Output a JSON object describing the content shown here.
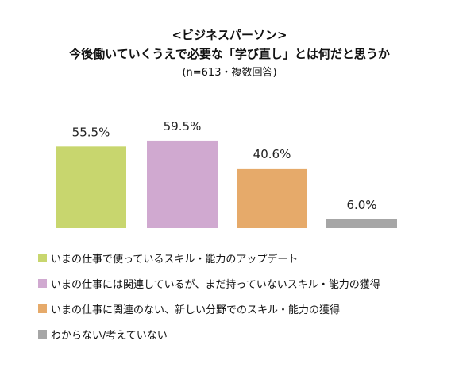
{
  "chart_data": {
    "type": "bar",
    "title": "<ビジネスパーソン>",
    "subtitle": "今後働いていくうえで必要な「学び直し」とは何だと思うか",
    "note": "(n=613・複数回答)",
    "unit": "%",
    "ylim": [
      0,
      100
    ],
    "grid": false,
    "legend_position": "bottom",
    "series": [
      {
        "name": "いまの仕事で使っているスキル・能力のアップデート",
        "value": 55.5,
        "label": "55.5%",
        "color": "#c8d66e"
      },
      {
        "name": "いまの仕事には関連しているが、まだ持っていないスキル・能力の獲得",
        "value": 59.5,
        "label": "59.5%",
        "color": "#d0a9d0"
      },
      {
        "name": "いまの仕事に関連のない、新しい分野でのスキル・能力の獲得",
        "value": 40.6,
        "label": "40.6%",
        "color": "#e6aa6a"
      },
      {
        "name": "わからない/考えていない",
        "value": 6.0,
        "label": "6.0%",
        "color": "#a6a6a6"
      }
    ]
  }
}
